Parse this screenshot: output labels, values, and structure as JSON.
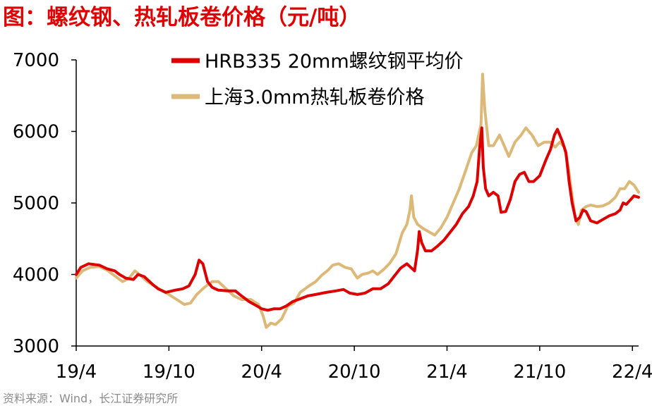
{
  "title": "图：螺纹钢、热轧板卷价格（元/吨）",
  "source": "资料来源：Wind，长江证券研究所",
  "colors": {
    "title": "#e00000",
    "rebar": "#dc0000",
    "hrc": "#dcb978",
    "axis": "#000000"
  },
  "chart_data": {
    "type": "line",
    "title": "图：螺纹钢、热轧板卷价格（元/吨）",
    "xlabel": "",
    "ylabel": "",
    "ylim": [
      3000,
      7000
    ],
    "yticks": [
      3000,
      4000,
      5000,
      6000,
      7000
    ],
    "xlim": [
      0,
      36.4
    ],
    "xticks": [
      {
        "label": "19/4",
        "t": 0
      },
      {
        "label": "19/10",
        "t": 6
      },
      {
        "label": "20/4",
        "t": 12
      },
      {
        "label": "20/10",
        "t": 18
      },
      {
        "label": "21/4",
        "t": 24
      },
      {
        "label": "21/10",
        "t": 30
      },
      {
        "label": "22/4",
        "t": 36
      }
    ],
    "grid": false,
    "legend": "top-center",
    "series": [
      {
        "name": "HRB335 20mm螺纹钢平均价",
        "color": "#dc0000",
        "points": [
          [
            0,
            4000
          ],
          [
            0.3,
            4100
          ],
          [
            0.8,
            4150
          ],
          [
            1.5,
            4130
          ],
          [
            2,
            4080
          ],
          [
            2.5,
            4050
          ],
          [
            2.8,
            4000
          ],
          [
            3.2,
            3950
          ],
          [
            3.7,
            3930
          ],
          [
            4.0,
            4000
          ],
          [
            4.4,
            3970
          ],
          [
            5,
            3850
          ],
          [
            5.3,
            3800
          ],
          [
            5.8,
            3750
          ],
          [
            6.4,
            3780
          ],
          [
            6.9,
            3800
          ],
          [
            7.3,
            3840
          ],
          [
            7.7,
            4000
          ],
          [
            7.95,
            4200
          ],
          [
            8.2,
            4150
          ],
          [
            8.5,
            3900
          ],
          [
            8.8,
            3820
          ],
          [
            9.2,
            3780
          ],
          [
            9.8,
            3770
          ],
          [
            10.3,
            3770
          ],
          [
            10.7,
            3700
          ],
          [
            11.2,
            3620
          ],
          [
            11.7,
            3560
          ],
          [
            12,
            3520
          ],
          [
            12.4,
            3500
          ],
          [
            12.8,
            3520
          ],
          [
            13.2,
            3520
          ],
          [
            13.6,
            3560
          ],
          [
            14,
            3620
          ],
          [
            14.5,
            3660
          ],
          [
            15,
            3700
          ],
          [
            15.5,
            3720
          ],
          [
            16.2,
            3750
          ],
          [
            16.8,
            3770
          ],
          [
            17.3,
            3790
          ],
          [
            17.7,
            3740
          ],
          [
            18.2,
            3720
          ],
          [
            18.7,
            3740
          ],
          [
            19.2,
            3800
          ],
          [
            19.7,
            3800
          ],
          [
            20.2,
            3870
          ],
          [
            20.6,
            3980
          ],
          [
            21,
            4090
          ],
          [
            21.4,
            4150
          ],
          [
            21.9,
            4050
          ],
          [
            22.1,
            4350
          ],
          [
            22.2,
            4600
          ],
          [
            22.35,
            4450
          ],
          [
            22.6,
            4330
          ],
          [
            23.0,
            4330
          ],
          [
            23.4,
            4400
          ],
          [
            23.8,
            4480
          ],
          [
            24.2,
            4590
          ],
          [
            24.6,
            4700
          ],
          [
            25,
            4850
          ],
          [
            25.4,
            4950
          ],
          [
            25.7,
            5100
          ],
          [
            25.95,
            5300
          ],
          [
            26.1,
            5750
          ],
          [
            26.25,
            6050
          ],
          [
            26.35,
            5500
          ],
          [
            26.5,
            5200
          ],
          [
            26.7,
            5100
          ],
          [
            27,
            5150
          ],
          [
            27.3,
            5100
          ],
          [
            27.5,
            4870
          ],
          [
            27.8,
            4880
          ],
          [
            28.1,
            5050
          ],
          [
            28.4,
            5300
          ],
          [
            28.7,
            5400
          ],
          [
            29,
            5430
          ],
          [
            29.3,
            5300
          ],
          [
            29.6,
            5300
          ],
          [
            30,
            5380
          ],
          [
            30.4,
            5600
          ],
          [
            30.7,
            5750
          ],
          [
            30.95,
            5950
          ],
          [
            31.15,
            6030
          ],
          [
            31.45,
            5870
          ],
          [
            31.7,
            5700
          ],
          [
            31.9,
            5300
          ],
          [
            32.1,
            5000
          ],
          [
            32.35,
            4750
          ],
          [
            32.6,
            4800
          ],
          [
            32.8,
            4900
          ],
          [
            33.0,
            4880
          ],
          [
            33.3,
            4750
          ],
          [
            33.7,
            4720
          ],
          [
            34.1,
            4770
          ],
          [
            34.5,
            4820
          ],
          [
            34.9,
            4850
          ],
          [
            35.2,
            4900
          ],
          [
            35.4,
            5000
          ],
          [
            35.6,
            4980
          ],
          [
            35.9,
            5050
          ],
          [
            36.1,
            5100
          ],
          [
            36.4,
            5080
          ]
        ]
      },
      {
        "name": "上海3.0mm热轧板卷价格",
        "color": "#dcb978",
        "points": [
          [
            0,
            3950
          ],
          [
            0.4,
            4050
          ],
          [
            0.9,
            4100
          ],
          [
            1.5,
            4110
          ],
          [
            2,
            4060
          ],
          [
            2.5,
            3980
          ],
          [
            3,
            3900
          ],
          [
            3.4,
            3940
          ],
          [
            3.8,
            4050
          ],
          [
            4.2,
            3980
          ],
          [
            4.6,
            3900
          ],
          [
            5,
            3850
          ],
          [
            5.5,
            3780
          ],
          [
            6,
            3720
          ],
          [
            6.5,
            3650
          ],
          [
            7,
            3580
          ],
          [
            7.4,
            3600
          ],
          [
            7.8,
            3720
          ],
          [
            8.3,
            3820
          ],
          [
            8.8,
            3900
          ],
          [
            9.2,
            3900
          ],
          [
            9.6,
            3820
          ],
          [
            10.2,
            3700
          ],
          [
            10.7,
            3650
          ],
          [
            11.3,
            3650
          ],
          [
            11.8,
            3580
          ],
          [
            12.1,
            3420
          ],
          [
            12.3,
            3260
          ],
          [
            12.6,
            3320
          ],
          [
            12.9,
            3300
          ],
          [
            13.3,
            3380
          ],
          [
            13.7,
            3560
          ],
          [
            14.1,
            3600
          ],
          [
            14.5,
            3750
          ],
          [
            15,
            3830
          ],
          [
            15.5,
            3900
          ],
          [
            15.9,
            3990
          ],
          [
            16.3,
            4060
          ],
          [
            16.6,
            4130
          ],
          [
            17,
            4150
          ],
          [
            17.4,
            4100
          ],
          [
            17.8,
            4080
          ],
          [
            18.2,
            3950
          ],
          [
            18.5,
            4000
          ],
          [
            18.9,
            4020
          ],
          [
            19.2,
            4050
          ],
          [
            19.5,
            4000
          ],
          [
            19.9,
            4070
          ],
          [
            20.3,
            4160
          ],
          [
            20.7,
            4290
          ],
          [
            21.1,
            4580
          ],
          [
            21.4,
            4700
          ],
          [
            21.6,
            4900
          ],
          [
            21.7,
            5100
          ],
          [
            21.85,
            4800
          ],
          [
            22.1,
            4700
          ],
          [
            22.4,
            4650
          ],
          [
            22.8,
            4600
          ],
          [
            23.2,
            4550
          ],
          [
            23.6,
            4650
          ],
          [
            24,
            4800
          ],
          [
            24.4,
            5000
          ],
          [
            24.8,
            5200
          ],
          [
            25.2,
            5450
          ],
          [
            25.6,
            5700
          ],
          [
            25.9,
            5800
          ],
          [
            26.2,
            6100
          ],
          [
            26.3,
            6800
          ],
          [
            26.45,
            6300
          ],
          [
            26.7,
            5800
          ],
          [
            27,
            5800
          ],
          [
            27.4,
            5950
          ],
          [
            27.7,
            5800
          ],
          [
            28,
            5650
          ],
          [
            28.4,
            5850
          ],
          [
            28.8,
            5950
          ],
          [
            29.1,
            6050
          ],
          [
            29.5,
            5950
          ],
          [
            29.9,
            5800
          ],
          [
            30.3,
            5850
          ],
          [
            30.7,
            5850
          ],
          [
            31,
            5780
          ],
          [
            31.3,
            5850
          ],
          [
            31.6,
            5780
          ],
          [
            31.85,
            5500
          ],
          [
            32.1,
            5100
          ],
          [
            32.3,
            4800
          ],
          [
            32.5,
            4700
          ],
          [
            32.7,
            4900
          ],
          [
            33,
            4950
          ],
          [
            33.3,
            4970
          ],
          [
            33.7,
            4950
          ],
          [
            34.1,
            4960
          ],
          [
            34.5,
            5000
          ],
          [
            34.9,
            5080
          ],
          [
            35.2,
            5200
          ],
          [
            35.5,
            5200
          ],
          [
            35.8,
            5300
          ],
          [
            36.1,
            5250
          ],
          [
            36.4,
            5150
          ]
        ]
      }
    ]
  }
}
